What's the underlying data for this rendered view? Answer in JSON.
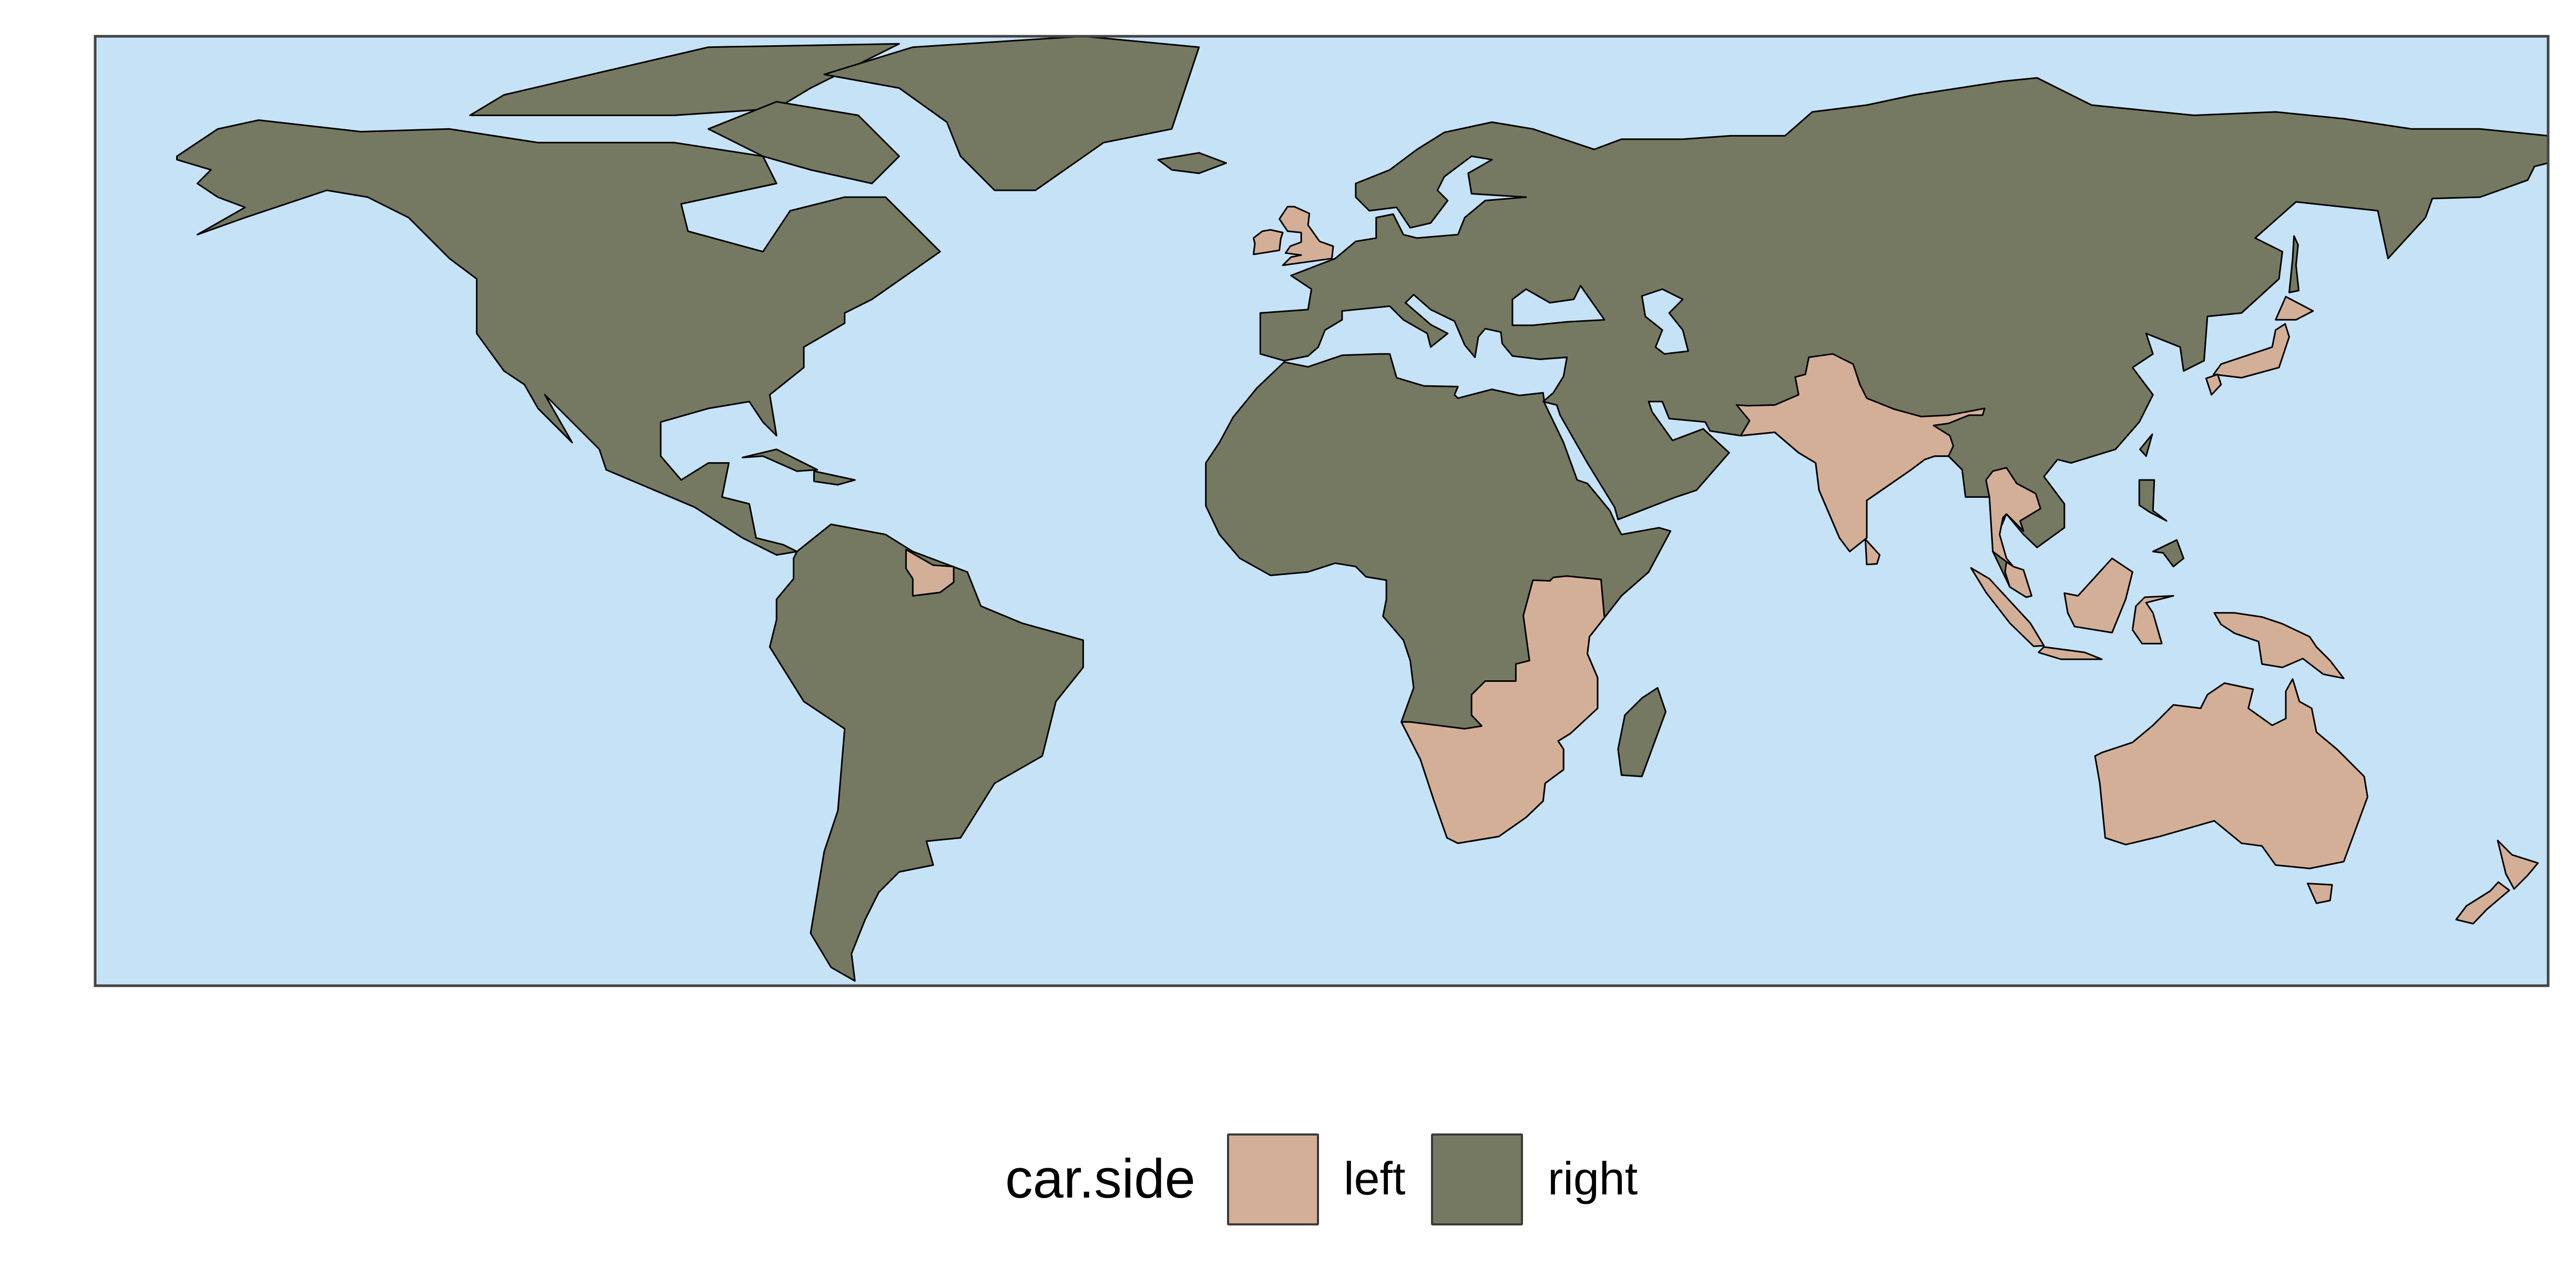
{
  "chart_data": {
    "type": "choropleth-map",
    "projection": "equirectangular",
    "legend": {
      "title": "car.side",
      "placement": "bottom",
      "entries": [
        {
          "label": "left",
          "color": "#D4AF97"
        },
        {
          "label": "right",
          "color": "#757961"
        }
      ]
    },
    "categories": [
      "left",
      "right"
    ],
    "ocean_color": "#C6E2F7",
    "panel_border_color": "#444444",
    "land_border_color": "#000000"
  }
}
